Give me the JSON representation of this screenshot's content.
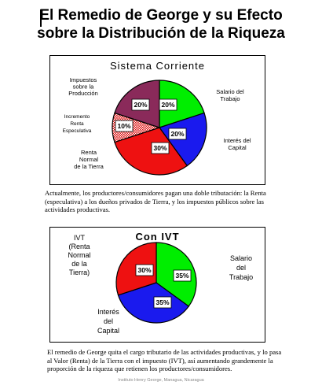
{
  "page": {
    "title_line1": "El Remedio de George y su Efecto",
    "title_line2": "sobre la Distribución de la Riqueza",
    "paragraph1": "Actualmente, los productores/consumidores pagan una doble tributación: la Renta (especulativa) a los dueños privados de Tierra, y los impuestos públicos sobre las actividades productivas.",
    "paragraph2": "El remedio de George quita el cargo tributario de las actividades productivas, y lo pasa al Valor (Renta) de la Tierra con el impuesto (IVT), así aumentando grandemente la proporción de la riqueza que retienen los productores/consumidores.",
    "footer": "Instituto Henry George, Managua, Nicaragua"
  },
  "colors": {
    "green": "#00ee00",
    "blue": "#1a1aee",
    "red": "#ee1111",
    "purple": "#8a2a5a",
    "pattern": "#dd1111"
  },
  "chart_data": [
    {
      "type": "pie",
      "title": "Sistema Corriente",
      "slices": [
        {
          "label": "Salario del Trabajo",
          "value": 20,
          "display": "20%",
          "color": "green"
        },
        {
          "label": "Interés del Capital",
          "value": 20,
          "display": "20%",
          "color": "blue"
        },
        {
          "label": "Renta Normal de la Tierra",
          "value": 30,
          "display": "30%",
          "color": "red"
        },
        {
          "label": "Incremento Renta Especulativa",
          "value": 10,
          "display": "10%",
          "color": "pattern"
        },
        {
          "label": "Impuestos sobre la Producción",
          "value": 20,
          "display": "20%",
          "color": "purple"
        }
      ]
    },
    {
      "type": "pie",
      "title": "Con IVT",
      "slices": [
        {
          "label": "Salario del Trabajo",
          "value": 35,
          "display": "35%",
          "color": "green"
        },
        {
          "label": "Interés del Capital",
          "value": 35,
          "display": "35%",
          "color": "blue"
        },
        {
          "label": "IVT (Renta Normal de la Tierra)",
          "value": 30,
          "display": "30%",
          "color": "red"
        }
      ]
    }
  ]
}
